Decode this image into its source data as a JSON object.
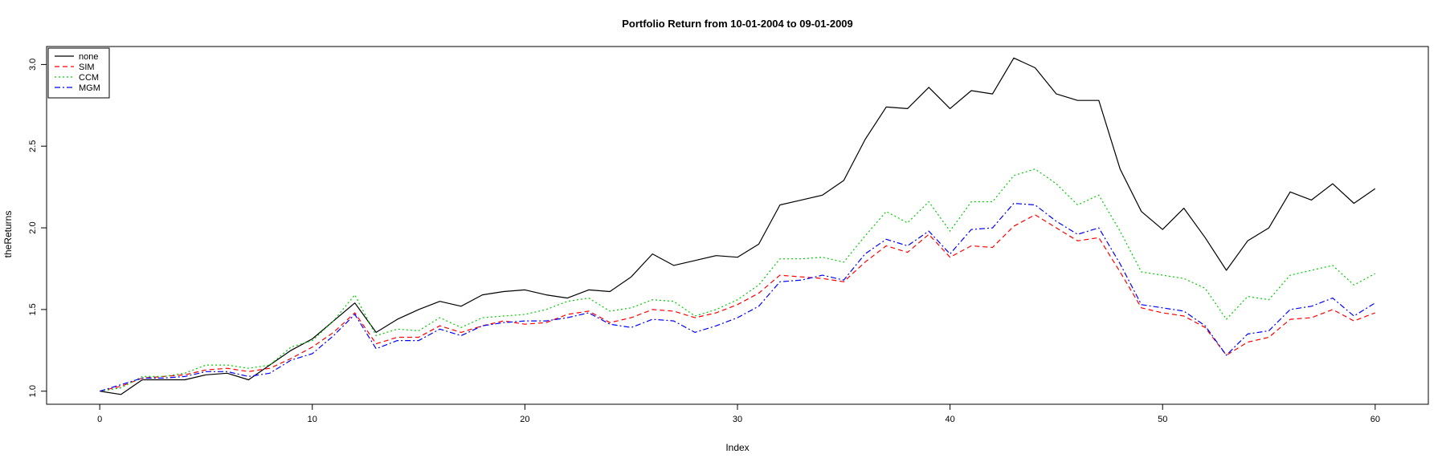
{
  "chart_data": {
    "type": "line",
    "title": "Portfolio Return from 10-01-2004 to 09-01-2009",
    "xlabel": "Index",
    "ylabel": "theReturns",
    "xlim": [
      -2.5,
      62.5
    ],
    "ylim": [
      0.92,
      3.11
    ],
    "x_ticks": [
      0,
      10,
      20,
      30,
      40,
      50,
      60
    ],
    "y_ticks": [
      1.0,
      1.5,
      2.0,
      2.5,
      3.0
    ],
    "y_tick_labels": [
      "1.0",
      "1.5",
      "2.0",
      "2.5",
      "3.0"
    ],
    "grid": false,
    "legend_position": "top-left",
    "x": [
      0,
      1,
      2,
      3,
      4,
      5,
      6,
      7,
      8,
      9,
      10,
      11,
      12,
      13,
      14,
      15,
      16,
      17,
      18,
      19,
      20,
      21,
      22,
      23,
      24,
      25,
      26,
      27,
      28,
      29,
      30,
      31,
      32,
      33,
      34,
      35,
      36,
      37,
      38,
      39,
      40,
      41,
      42,
      43,
      44,
      45,
      46,
      47,
      48,
      49,
      50,
      51,
      52,
      53,
      54,
      55,
      56,
      57,
      58,
      59,
      60
    ],
    "series": [
      {
        "name": "none",
        "color": "#000000",
        "dash": "solid",
        "values": [
          1.0,
          0.98,
          1.07,
          1.07,
          1.07,
          1.1,
          1.11,
          1.07,
          1.16,
          1.25,
          1.32,
          1.43,
          1.54,
          1.36,
          1.44,
          1.5,
          1.55,
          1.52,
          1.59,
          1.61,
          1.62,
          1.59,
          1.57,
          1.62,
          1.61,
          1.7,
          1.84,
          1.77,
          1.8,
          1.83,
          1.82,
          1.9,
          2.14,
          2.17,
          2.2,
          2.29,
          2.54,
          2.74,
          2.73,
          2.86,
          2.73,
          2.84,
          2.82,
          3.04,
          2.98,
          2.82,
          2.78,
          2.78,
          2.36,
          2.1,
          1.99,
          2.12,
          1.94,
          1.74,
          1.92,
          2.0,
          2.22,
          2.17,
          2.27,
          2.15,
          2.24
        ]
      },
      {
        "name": "SIM",
        "color": "#ff0000",
        "dash": "dashed",
        "values": [
          1.0,
          1.03,
          1.08,
          1.09,
          1.1,
          1.13,
          1.14,
          1.12,
          1.14,
          1.2,
          1.27,
          1.36,
          1.48,
          1.29,
          1.33,
          1.33,
          1.4,
          1.36,
          1.4,
          1.43,
          1.41,
          1.42,
          1.47,
          1.49,
          1.42,
          1.45,
          1.5,
          1.49,
          1.45,
          1.48,
          1.53,
          1.6,
          1.71,
          1.7,
          1.69,
          1.67,
          1.79,
          1.89,
          1.85,
          1.96,
          1.82,
          1.89,
          1.88,
          2.01,
          2.08,
          2.0,
          1.92,
          1.94,
          1.73,
          1.51,
          1.48,
          1.46,
          1.39,
          1.22,
          1.3,
          1.33,
          1.44,
          1.45,
          1.5,
          1.43,
          1.48
        ]
      },
      {
        "name": "CCM",
        "color": "#00cc00",
        "dash": "dotted",
        "values": [
          1.0,
          1.02,
          1.09,
          1.09,
          1.11,
          1.16,
          1.16,
          1.14,
          1.16,
          1.27,
          1.31,
          1.43,
          1.59,
          1.34,
          1.38,
          1.37,
          1.45,
          1.39,
          1.45,
          1.46,
          1.47,
          1.5,
          1.55,
          1.57,
          1.49,
          1.51,
          1.56,
          1.55,
          1.46,
          1.5,
          1.56,
          1.65,
          1.81,
          1.81,
          1.82,
          1.79,
          1.95,
          2.1,
          2.03,
          2.16,
          1.98,
          2.16,
          2.16,
          2.32,
          2.36,
          2.27,
          2.14,
          2.2,
          1.98,
          1.73,
          1.71,
          1.69,
          1.63,
          1.44,
          1.58,
          1.56,
          1.71,
          1.74,
          1.77,
          1.65,
          1.72
        ]
      },
      {
        "name": "MGM",
        "color": "#0000ff",
        "dash": "dashdot",
        "values": [
          1.0,
          1.04,
          1.08,
          1.08,
          1.09,
          1.12,
          1.12,
          1.09,
          1.11,
          1.19,
          1.23,
          1.34,
          1.47,
          1.26,
          1.31,
          1.31,
          1.38,
          1.34,
          1.4,
          1.42,
          1.43,
          1.43,
          1.45,
          1.48,
          1.41,
          1.39,
          1.44,
          1.43,
          1.36,
          1.4,
          1.45,
          1.52,
          1.67,
          1.68,
          1.71,
          1.68,
          1.84,
          1.93,
          1.89,
          1.98,
          1.84,
          1.99,
          2.0,
          2.15,
          2.14,
          2.04,
          1.96,
          2.0,
          1.78,
          1.53,
          1.51,
          1.49,
          1.4,
          1.22,
          1.35,
          1.37,
          1.5,
          1.52,
          1.57,
          1.46,
          1.54
        ]
      }
    ]
  }
}
